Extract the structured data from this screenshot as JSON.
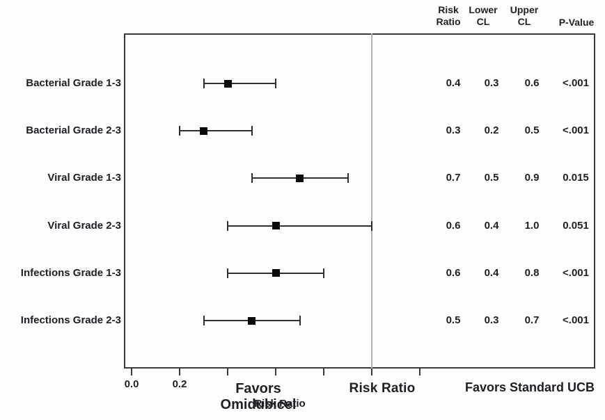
{
  "chart_data": {
    "type": "forest",
    "title": "",
    "columns": [
      {
        "label": "Risk\nRatio"
      },
      {
        "label": "Lower\nCL"
      },
      {
        "label": "Upper\nCL"
      },
      {
        "label": "P-Value"
      }
    ],
    "rows": [
      {
        "label": "Bacterial Grade 1-3",
        "risk_ratio": 0.4,
        "lower_cl": 0.3,
        "upper_cl": 0.6,
        "p_value": "<.001"
      },
      {
        "label": "Bacterial Grade 2-3",
        "risk_ratio": 0.3,
        "lower_cl": 0.2,
        "upper_cl": 0.5,
        "p_value": "<.001"
      },
      {
        "label": "Viral Grade 1-3",
        "risk_ratio": 0.7,
        "lower_cl": 0.5,
        "upper_cl": 0.9,
        "p_value": "0.015"
      },
      {
        "label": "Viral Grade 2-3",
        "risk_ratio": 0.6,
        "lower_cl": 0.4,
        "upper_cl": 1.0,
        "p_value": "0.051"
      },
      {
        "label": "Infections Grade 1-3",
        "risk_ratio": 0.6,
        "lower_cl": 0.4,
        "upper_cl": 0.8,
        "p_value": "<.001"
      },
      {
        "label": "Infections Grade 2-3",
        "risk_ratio": 0.5,
        "lower_cl": 0.3,
        "upper_cl": 0.7,
        "p_value": "<.001"
      }
    ],
    "row_value_display": [
      {
        "risk_ratio": "0.4",
        "lower_cl": "0.3",
        "upper_cl": "0.6"
      },
      {
        "risk_ratio": "0.3",
        "lower_cl": "0.2",
        "upper_cl": "0.5"
      },
      {
        "risk_ratio": "0.7",
        "lower_cl": "0.5",
        "upper_cl": "0.9"
      },
      {
        "risk_ratio": "0.6",
        "lower_cl": "0.4",
        "upper_cl": "1.0"
      },
      {
        "risk_ratio": "0.6",
        "lower_cl": "0.4",
        "upper_cl": "0.8"
      },
      {
        "risk_ratio": "0.5",
        "lower_cl": "0.3",
        "upper_cl": "0.7"
      }
    ],
    "x_axis": {
      "title": "Risk Ratio",
      "ticks": [
        0.0,
        0.2,
        0.4,
        0.6,
        0.8,
        1.0,
        1.2
      ],
      "labeled_ticks": [
        {
          "value": 0.0,
          "label": "0.0"
        },
        {
          "value": 0.2,
          "label": "0.2"
        }
      ],
      "reference_line": 1.0,
      "grid": false
    },
    "annotations": {
      "favors_left": "Favors Omidubicel",
      "center_axis_label": "Risk Ratio",
      "favors_right": "Favors Standard UCB"
    },
    "legend": null,
    "colors": {
      "marker": "#0a0a0a",
      "error_bar": "#2e2e2e",
      "frame": "#3a3a3a",
      "reference_line": "#b3b3b3",
      "text": "#1e1e24",
      "background": "#fdfdfd"
    }
  }
}
